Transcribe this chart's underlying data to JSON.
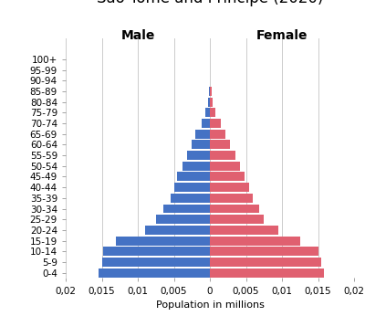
{
  "xlabel": "Population in millions",
  "age_groups": [
    "0-4",
    "5-9",
    "10-14",
    "15-19",
    "20-24",
    "25-29",
    "30-34",
    "35-39",
    "40-44",
    "45-49",
    "50-54",
    "55-59",
    "60-64",
    "65-69",
    "70-74",
    "75-79",
    "80-84",
    "85-89",
    "90-94",
    "95-99",
    "100+"
  ],
  "male": [
    0.0155,
    0.015,
    0.0148,
    0.013,
    0.009,
    0.0075,
    0.0065,
    0.0055,
    0.005,
    0.0045,
    0.0038,
    0.0032,
    0.0025,
    0.002,
    0.0012,
    0.0006,
    0.0003,
    0.00015,
    5e-05,
    2e-05,
    1e-05
  ],
  "female": [
    0.0158,
    0.0155,
    0.015,
    0.0125,
    0.0095,
    0.0075,
    0.0068,
    0.006,
    0.0055,
    0.0048,
    0.0042,
    0.0035,
    0.0028,
    0.0022,
    0.0015,
    0.0008,
    0.0004,
    0.0002,
    6e-05,
    2e-05,
    1e-05
  ],
  "male_color": "#4472c4",
  "female_color": "#e06070",
  "background_color": "#ffffff",
  "xlim": 0.02,
  "male_label": "Male",
  "female_label": "Female",
  "grid_color": "#cccccc",
  "title_fontsize": 12,
  "axis_label_fontsize": 8,
  "tick_label_fontsize": 7.5,
  "gender_label_fontsize": 10
}
